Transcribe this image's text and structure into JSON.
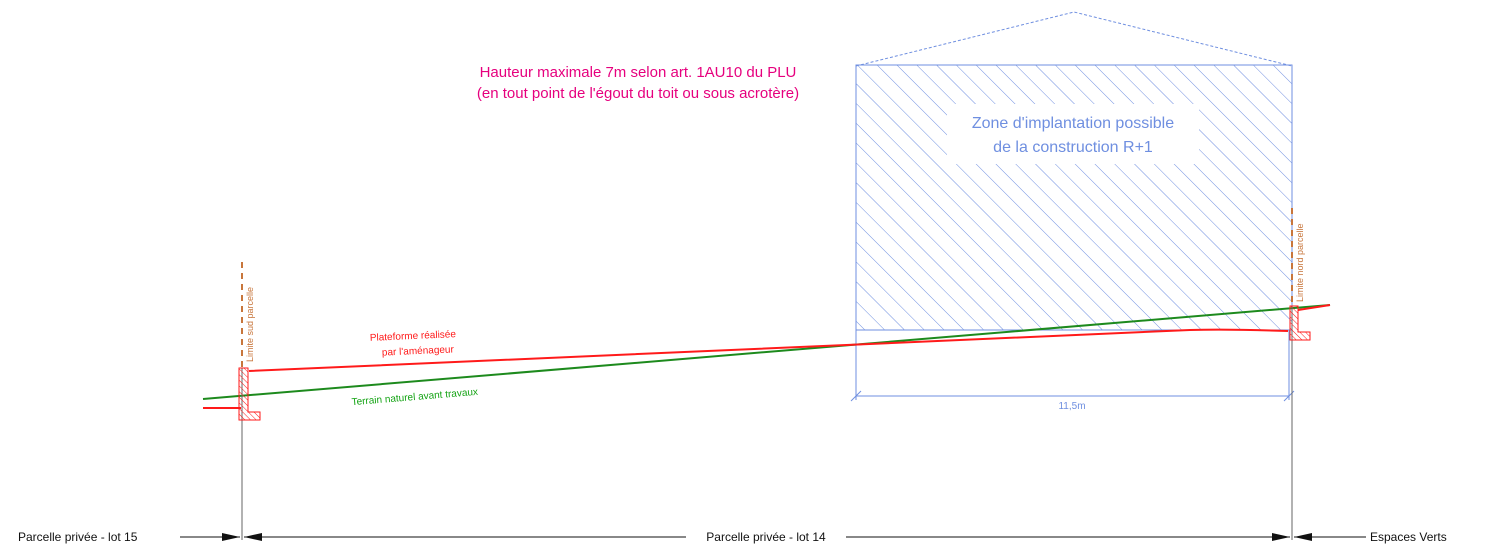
{
  "height_note": {
    "line1": "Hauteur maximale 7m selon art. 1AU10 du PLU",
    "line2": "(en tout point de l'égout du toit ou sous acrotère)"
  },
  "zone": {
    "line1": "Zone d'implantation possible",
    "line2": "de la construction R+1"
  },
  "dimension": {
    "width_label": "11,5m"
  },
  "limits": {
    "south": "Limite sud parcelle",
    "north": "Limite nord parcelle"
  },
  "platform": {
    "line1": "Plateforme réalisée",
    "line2": "par l'aménageur"
  },
  "terrain": {
    "label": "Terrain naturel avant travaux"
  },
  "parcels": {
    "left": "Parcelle privée - lot 15",
    "middle": "Parcelle privée - lot 14",
    "right": "Espaces Verts"
  },
  "colors": {
    "height_note": "#e6007e",
    "zone": "#6f8fe0",
    "platform": "#ff1a1a",
    "terrain": "#13a313",
    "limit": "#c8763c"
  }
}
